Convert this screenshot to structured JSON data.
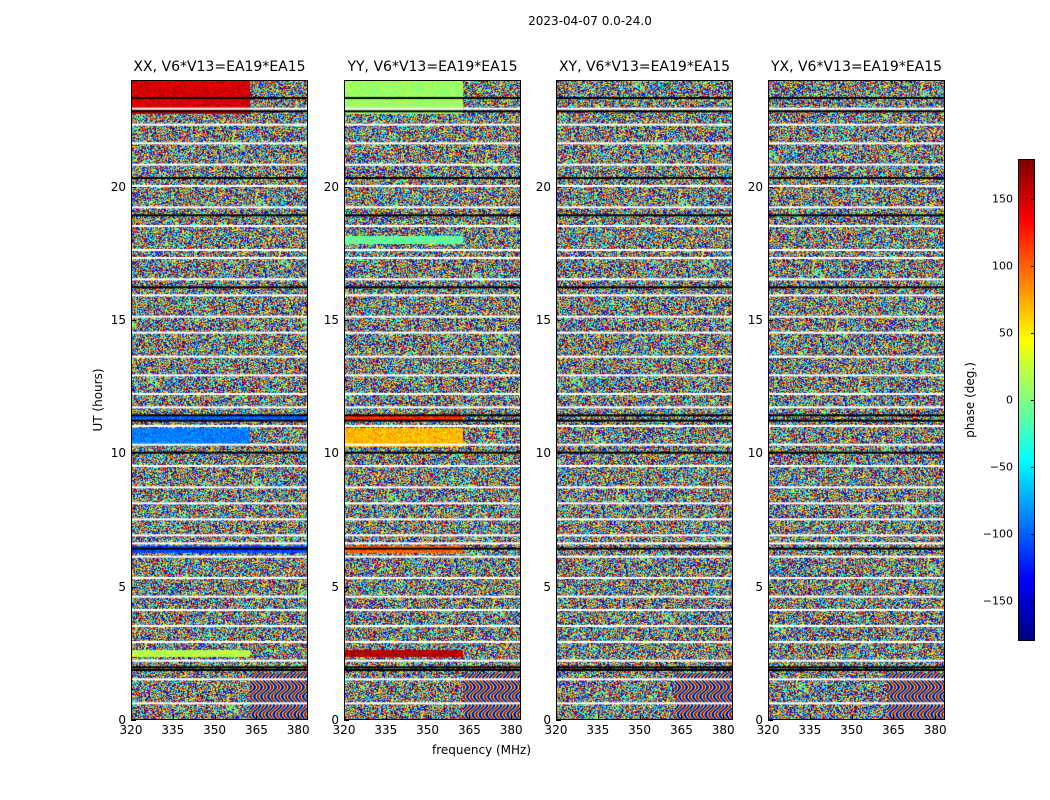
{
  "chart_data": {
    "type": "heatmap",
    "suptitle": "2023-04-07 0.0-24.0",
    "panels": [
      {
        "title": "XX, V6*V13=EA19*EA15",
        "pol": "XX"
      },
      {
        "title": "YY, V6*V13=EA19*EA15",
        "pol": "YY"
      },
      {
        "title": "XY, V6*V13=EA19*EA15",
        "pol": "XY"
      },
      {
        "title": "YX, V6*V13=EA19*EA15",
        "pol": "YX"
      }
    ],
    "xlabel": "frequency (MHz)",
    "ylabel": "UT (hours)",
    "xlim": [
      320,
      383.5
    ],
    "ylim": [
      0,
      24
    ],
    "xticks": [
      320,
      335,
      350,
      365,
      380
    ],
    "xtick_labels": [
      "320",
      "335",
      "350",
      "365",
      "380"
    ],
    "yticks": [
      0,
      5,
      10,
      15,
      20
    ],
    "ytick_labels": [
      "0",
      "5",
      "10",
      "15",
      "20"
    ],
    "colorbar": {
      "label": "phase (deg.)",
      "range": [
        -180,
        180
      ],
      "ticks": [
        150,
        100,
        50,
        0,
        -50,
        -100,
        -150
      ],
      "tick_labels": [
        "150",
        "100",
        "50",
        "0",
        "−50",
        "−100",
        "−150"
      ],
      "colormap": "jet"
    },
    "flagged_ut_hours": [
      23.0,
      22.4,
      21.7,
      20.9,
      20.1,
      19.3,
      18.6,
      17.7,
      17.4,
      16.6,
      16.0,
      15.2,
      14.6,
      13.7,
      13.0,
      12.3,
      11.8,
      11.1,
      10.4,
      9.6,
      8.8,
      8.2,
      7.6,
      7.0,
      6.7,
      6.2,
      5.4,
      4.7,
      4.2,
      3.6,
      3.0,
      2.3,
      1.6,
      0.7
    ],
    "coherent_features": [
      {
        "pol": "XX",
        "ut_range": [
          22.8,
          24.0
        ],
        "freq_max": 362,
        "phase_deg": 150
      },
      {
        "pol": "XX",
        "ut_range": [
          11.3,
          11.5
        ],
        "freq_max": 383.5,
        "phase_deg": -100
      },
      {
        "pol": "XX",
        "ut_range": [
          10.4,
          11.0
        ],
        "freq_max": 362,
        "phase_deg": -90
      },
      {
        "pol": "XX",
        "ut_range": [
          6.3,
          6.6
        ],
        "freq_max": 383.5,
        "phase_deg": -110
      },
      {
        "pol": "XX",
        "ut_range": [
          2.4,
          2.7
        ],
        "freq_max": 362,
        "phase_deg": 20
      },
      {
        "pol": "YY",
        "ut_range": [
          22.8,
          24.0
        ],
        "freq_max": 362,
        "phase_deg": 10
      },
      {
        "pol": "YY",
        "ut_range": [
          17.9,
          18.2
        ],
        "freq_max": 362,
        "phase_deg": -10
      },
      {
        "pol": "YY",
        "ut_range": [
          11.3,
          11.5
        ],
        "freq_max": 362,
        "phase_deg": 120
      },
      {
        "pol": "YY",
        "ut_range": [
          10.3,
          11.0
        ],
        "freq_max": 362,
        "phase_deg": 70
      },
      {
        "pol": "YY",
        "ut_range": [
          6.3,
          6.6
        ],
        "freq_max": 362,
        "phase_deg": 100
      },
      {
        "pol": "YY",
        "ut_range": [
          2.4,
          2.7
        ],
        "freq_max": 362,
        "phase_deg": 160
      }
    ]
  }
}
